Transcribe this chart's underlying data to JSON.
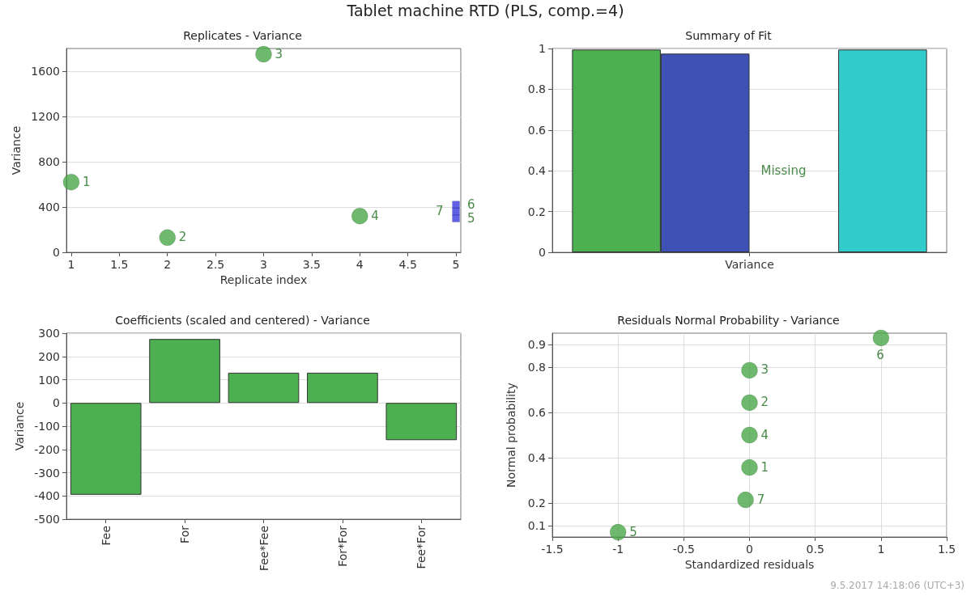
{
  "chart_data": [
    {
      "type": "scatter",
      "title": "Tablet machine RTD (PLS, comp.=4)",
      "subtitle": "Replicates - Variance",
      "xlabel": "Replicate index",
      "ylabel": "Variance",
      "xlim": [
        0.95,
        5.05
      ],
      "xticks": [
        1,
        1.5,
        2,
        2.5,
        3,
        3.5,
        4,
        4.5,
        5
      ],
      "ylim": [
        0,
        1800
      ],
      "yticks": [
        0,
        400,
        800,
        1200,
        1600
      ],
      "grid": "y",
      "series": [
        {
          "color": "#4aa84a",
          "marker": "circle",
          "x": [
            1,
            2,
            3,
            4
          ],
          "values": [
            620,
            130,
            1750,
            320
          ]
        },
        {
          "color": "#3a3ae0",
          "marker": "square",
          "x": [
            5,
            5,
            5
          ],
          "values": [
            300,
            420,
            360
          ]
        }
      ],
      "annotations": [
        {
          "text": "1",
          "x": 1,
          "y": 620
        },
        {
          "text": "2",
          "x": 2,
          "y": 130
        },
        {
          "text": "3",
          "x": 3,
          "y": 1750
        },
        {
          "text": "4",
          "x": 4,
          "y": 320
        },
        {
          "text": "5",
          "x": 5,
          "y": 300
        },
        {
          "text": "6",
          "x": 5,
          "y": 420
        },
        {
          "text": "7",
          "x": 5,
          "y": 360
        }
      ]
    },
    {
      "type": "bar",
      "title": "Summary of Fit",
      "categories": [
        "Variance"
      ],
      "ylim": [
        0,
        1
      ],
      "yticks": [
        0,
        0.2,
        0.4,
        0.6,
        0.8,
        1
      ],
      "grid": "y",
      "series": [
        {
          "color": "#4caf50",
          "values": [
            0.995
          ]
        },
        {
          "color": "#3f51b5",
          "values": [
            0.975
          ]
        },
        {
          "values": [
            null
          ]
        },
        {
          "color": "#33cccc",
          "values": [
            0.995
          ]
        }
      ],
      "annotations": [
        {
          "text": "Missing",
          "x": "Variance",
          "y": 0.4
        }
      ]
    },
    {
      "type": "bar",
      "title": "Coefficients (scaled and centered) - Variance",
      "ylabel": "Variance",
      "categories": [
        "Fee",
        "For",
        "Fee*Fee",
        "For*For",
        "Fee*For"
      ],
      "values": [
        -395,
        275,
        130,
        130,
        -160
      ],
      "color": "#4caf50",
      "ylim": [
        -500,
        300
      ],
      "yticks": [
        -500,
        -400,
        -300,
        -200,
        -100,
        0,
        100,
        200,
        300
      ],
      "grid": "y"
    },
    {
      "type": "scatter",
      "title": "Residuals Normal Probability - Variance",
      "xlabel": "Standardized residuals",
      "ylabel": "Normal probability",
      "x": [
        -1,
        -0.03,
        0,
        0,
        0,
        0,
        1
      ],
      "values": [
        0.071,
        0.214,
        0.357,
        0.5,
        0.643,
        0.786,
        0.929
      ],
      "color": "#4aa84a",
      "marker": "circle",
      "xlim": [
        -1.5,
        1.5
      ],
      "xticks": [
        -1.5,
        -1,
        -0.5,
        0,
        0.5,
        1,
        1.5
      ],
      "ylim": [
        0.05,
        0.95
      ],
      "yticks": [
        0.1,
        0.2,
        0.4,
        0.6,
        0.8,
        0.9
      ],
      "grid": true,
      "annotations": [
        {
          "text": "5",
          "x": -1,
          "y": 0.071
        },
        {
          "text": "7",
          "x": -0.03,
          "y": 0.214
        },
        {
          "text": "1",
          "x": 0,
          "y": 0.357
        },
        {
          "text": "4",
          "x": 0,
          "y": 0.5
        },
        {
          "text": "2",
          "x": 0,
          "y": 0.643
        },
        {
          "text": "3",
          "x": 0,
          "y": 0.786
        },
        {
          "text": "6",
          "x": 1,
          "y": 0.929
        },
        "9.5.2017 14:18:06 (UTC+3)"
      ]
    }
  ]
}
